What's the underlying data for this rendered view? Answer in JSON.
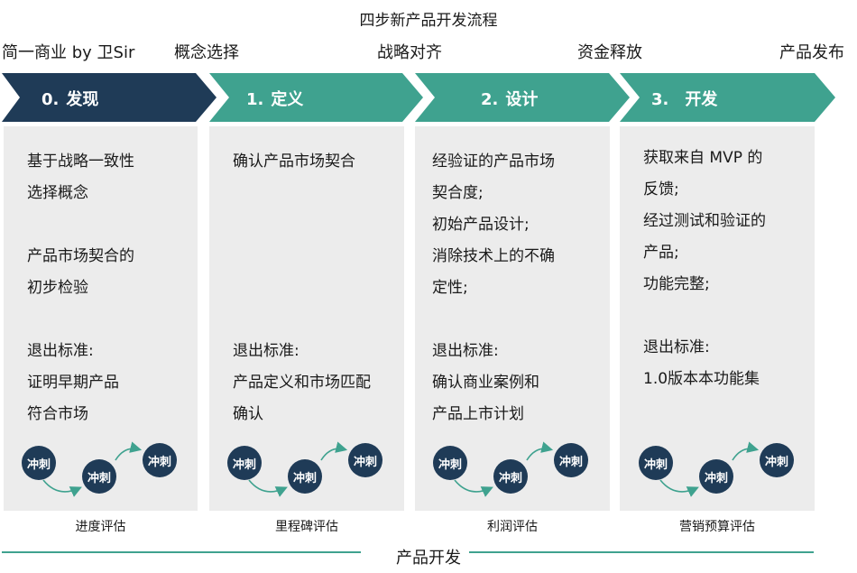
{
  "title": "四步新产品开发流程",
  "gates": [
    "简一商业 by 卫Sir",
    "概念选择",
    "战略对齐",
    "资金释放",
    "产品发布"
  ],
  "stages": [
    {
      "num": "0.",
      "name": "发现",
      "color": "#1f3b57"
    },
    {
      "num": "1.",
      "name": "定义",
      "color": "#3fa28f"
    },
    {
      "num": "2.",
      "name": "设计",
      "color": "#3fa28f"
    },
    {
      "num": "3.",
      "name": "开发",
      "color": "#3fa28f"
    }
  ],
  "panels": [
    {
      "lines": [
        "基于战略一致性",
        "选择概念",
        "",
        "产品市场契合的",
        "初步检验",
        "",
        "退出标准:",
        "证明早期产品",
        "符合市场"
      ]
    },
    {
      "lines": [
        "确认产品市场契合",
        "",
        "",
        "",
        "",
        "",
        "退出标准:",
        "产品定义和市场匹配",
        "确认"
      ]
    },
    {
      "lines": [
        "经验证的产品市场",
        "契合度;",
        "初始产品设计;",
        "消除技术上的不确",
        "定性;",
        "",
        "退出标准:",
        "确认商业案例和",
        "产品上市计划"
      ]
    },
    {
      "lines": [
        "获取来自 MVP 的",
        "反馈;",
        "经过测试和验证的",
        "产品;",
        "功能完整;",
        "",
        "退出标准:",
        "1.0版本本功能集"
      ]
    }
  ],
  "sprint_label": "冲刺",
  "reviews": [
    "进度评估",
    "里程碑评估",
    "利润评估",
    "营销预算评估"
  ],
  "footer": "产品开发",
  "colors": {
    "navy": "#1f3b57",
    "teal": "#3fa28f",
    "panel": "#ececec"
  }
}
